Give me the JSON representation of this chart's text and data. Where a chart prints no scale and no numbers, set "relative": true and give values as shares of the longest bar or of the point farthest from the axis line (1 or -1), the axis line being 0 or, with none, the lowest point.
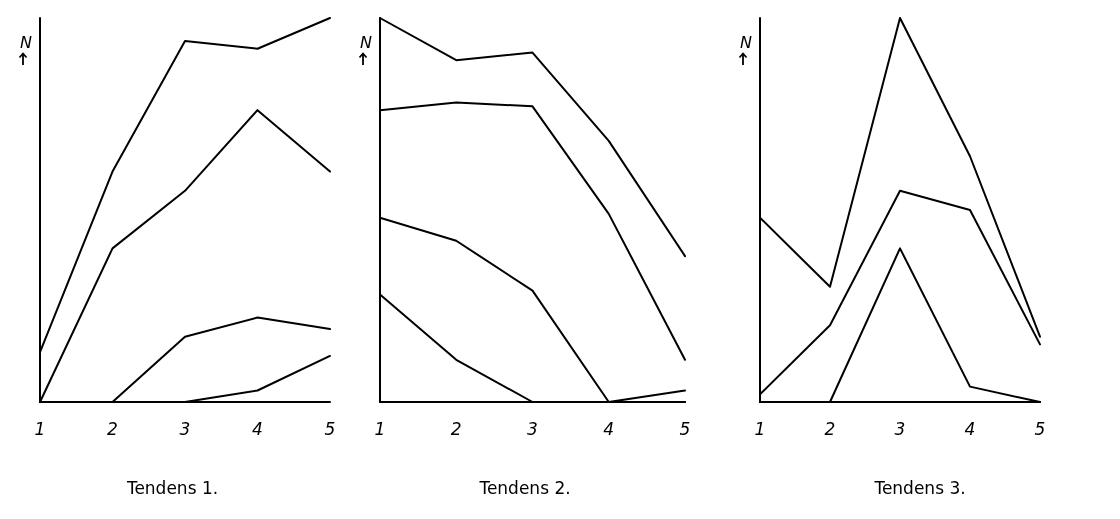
{
  "chart_data": [
    {
      "type": "line",
      "title": "Tendens 1.",
      "ylabel": "N",
      "categories": [
        "1",
        "2",
        "3",
        "4",
        "5"
      ],
      "relative": true,
      "marker": "none",
      "line_style": "solid",
      "grid": false,
      "series": [
        {
          "color": "#000000",
          "values": [
            0.13,
            0.6,
            0.94,
            0.92,
            1
          ]
        },
        {
          "color": "#000000",
          "values": [
            0,
            0.4,
            0.55,
            0.76,
            0.6
          ]
        },
        {
          "color": "#000000",
          "values": [
            0,
            0,
            0.17,
            0.22,
            0.19
          ]
        },
        {
          "color": "#000000",
          "values": [
            null,
            null,
            0,
            0.03,
            0.12
          ]
        }
      ]
    },
    {
      "type": "line",
      "title": "Tendens 2.",
      "ylabel": "N",
      "categories": [
        "1",
        "2",
        "3",
        "4",
        "5"
      ],
      "relative": true,
      "marker": "none",
      "line_style": "solid",
      "grid": false,
      "series": [
        {
          "color": "#000000",
          "values": [
            1,
            0.89,
            0.91,
            0.68,
            0.38
          ]
        },
        {
          "color": "#000000",
          "values": [
            0.76,
            0.78,
            0.77,
            0.49,
            0.11
          ]
        },
        {
          "color": "#000000",
          "values": [
            0.48,
            0.42,
            0.29,
            0,
            0.03
          ]
        },
        {
          "color": "#000000",
          "values": [
            0.28,
            0.11,
            0,
            0,
            0
          ]
        }
      ]
    },
    {
      "type": "line",
      "title": "Tendens 3.",
      "ylabel": "N",
      "categories": [
        "1",
        "2",
        "3",
        "4",
        "5"
      ],
      "relative": true,
      "marker": "none",
      "line_style": "solid",
      "grid": false,
      "series": [
        {
          "color": "#000000",
          "values": [
            0.48,
            0.3,
            1,
            0.64,
            0.17
          ]
        },
        {
          "color": "#000000",
          "values": [
            0.02,
            0.2,
            0.55,
            0.5,
            0.15
          ]
        },
        {
          "color": "#000000",
          "values": [
            0,
            0,
            0.4,
            0.04,
            0
          ]
        }
      ]
    }
  ]
}
